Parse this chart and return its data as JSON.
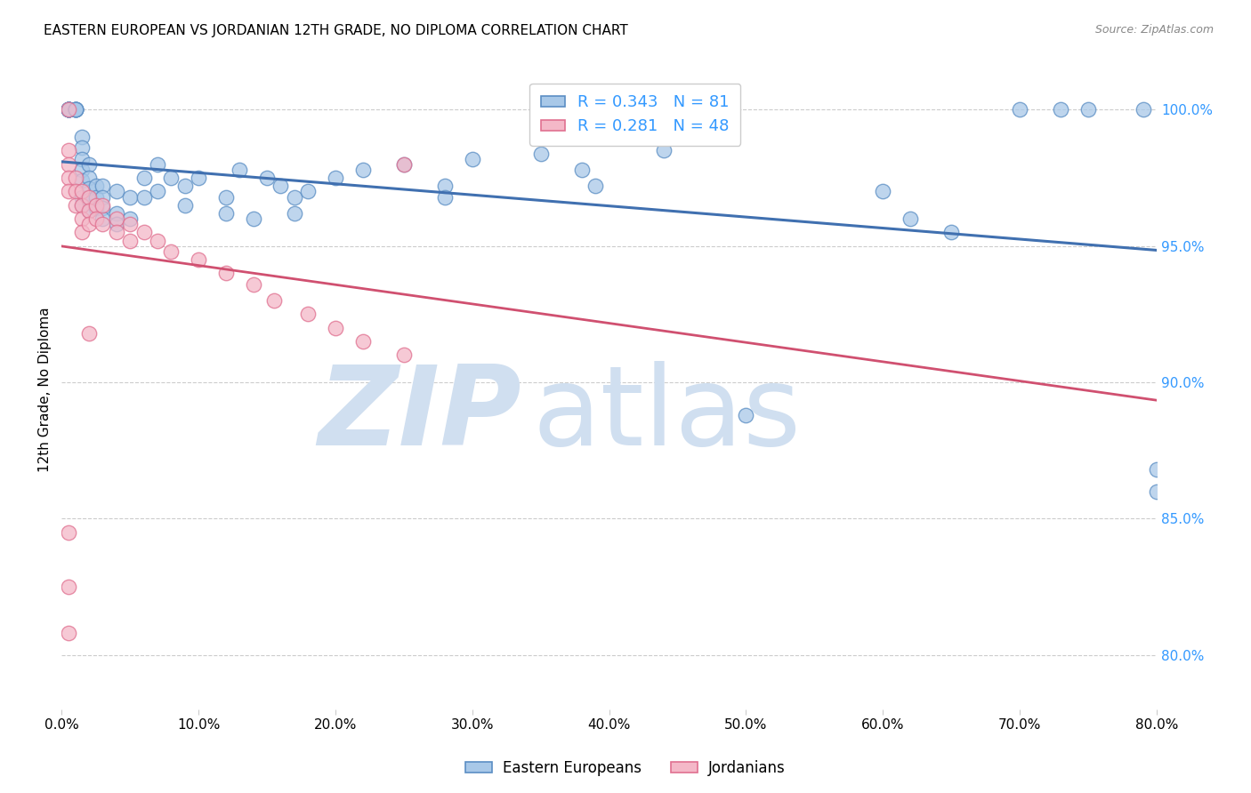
{
  "title": "EASTERN EUROPEAN VS JORDANIAN 12TH GRADE, NO DIPLOMA CORRELATION CHART",
  "source": "Source: ZipAtlas.com",
  "ylabel_left": "12th Grade, No Diploma",
  "x_tick_labels": [
    "0.0%",
    "10.0%",
    "20.0%",
    "30.0%",
    "40.0%",
    "50.0%",
    "60.0%",
    "70.0%",
    "80.0%"
  ],
  "x_tick_values": [
    0.0,
    0.1,
    0.2,
    0.3,
    0.4,
    0.5,
    0.6,
    0.7,
    0.8
  ],
  "y_tick_labels": [
    "100.0%",
    "95.0%",
    "90.0%",
    "85.0%",
    "80.0%"
  ],
  "y_tick_values": [
    1.0,
    0.95,
    0.9,
    0.85,
    0.8
  ],
  "xlim": [
    0.0,
    0.8
  ],
  "ylim": [
    0.78,
    1.015
  ],
  "legend_label_blue": "Eastern Europeans",
  "legend_label_pink": "Jordanians",
  "R_blue": 0.343,
  "N_blue": 81,
  "R_pink": 0.281,
  "N_pink": 48,
  "blue_color": "#A8C8E8",
  "pink_color": "#F4B8C8",
  "blue_edge_color": "#5B8EC4",
  "pink_edge_color": "#E07090",
  "blue_line_color": "#4070B0",
  "pink_line_color": "#D05070",
  "watermark_zip": "ZIP",
  "watermark_atlas": "atlas",
  "watermark_color": "#D0DFF0",
  "grid_color": "#CCCCCC",
  "right_axis_color": "#3399FF",
  "blue_scatter_x": [
    0.005,
    0.005,
    0.005,
    0.005,
    0.005,
    0.005,
    0.005,
    0.005,
    0.005,
    0.01,
    0.01,
    0.01,
    0.01,
    0.01,
    0.015,
    0.015,
    0.015,
    0.015,
    0.015,
    0.015,
    0.015,
    0.02,
    0.02,
    0.02,
    0.02,
    0.02,
    0.025,
    0.025,
    0.025,
    0.03,
    0.03,
    0.03,
    0.03,
    0.04,
    0.04,
    0.04,
    0.05,
    0.05,
    0.06,
    0.06,
    0.07,
    0.07,
    0.08,
    0.09,
    0.09,
    0.1,
    0.12,
    0.12,
    0.13,
    0.14,
    0.15,
    0.16,
    0.17,
    0.17,
    0.18,
    0.2,
    0.22,
    0.25,
    0.28,
    0.28,
    0.3,
    0.35,
    0.38,
    0.39,
    0.44,
    0.5,
    0.6,
    0.62,
    0.65,
    0.7,
    0.73,
    0.75,
    0.79,
    0.8,
    0.8
  ],
  "blue_scatter_y": [
    1.0,
    1.0,
    1.0,
    1.0,
    1.0,
    1.0,
    1.0,
    1.0,
    1.0,
    1.0,
    1.0,
    1.0,
    1.0,
    1.0,
    0.99,
    0.986,
    0.982,
    0.978,
    0.974,
    0.968,
    0.965,
    0.98,
    0.975,
    0.971,
    0.967,
    0.963,
    0.972,
    0.968,
    0.964,
    0.972,
    0.968,
    0.964,
    0.96,
    0.97,
    0.962,
    0.958,
    0.968,
    0.96,
    0.975,
    0.968,
    0.98,
    0.97,
    0.975,
    0.972,
    0.965,
    0.975,
    0.968,
    0.962,
    0.978,
    0.96,
    0.975,
    0.972,
    0.968,
    0.962,
    0.97,
    0.975,
    0.978,
    0.98,
    0.972,
    0.968,
    0.982,
    0.984,
    0.978,
    0.972,
    0.985,
    0.888,
    0.97,
    0.96,
    0.955,
    1.0,
    1.0,
    1.0,
    1.0,
    0.868,
    0.86
  ],
  "pink_scatter_x": [
    0.005,
    0.005,
    0.005,
    0.005,
    0.005,
    0.01,
    0.01,
    0.01,
    0.015,
    0.015,
    0.015,
    0.015,
    0.02,
    0.02,
    0.02,
    0.025,
    0.025,
    0.03,
    0.03,
    0.04,
    0.04,
    0.05,
    0.05,
    0.06,
    0.07,
    0.08,
    0.1,
    0.12,
    0.14,
    0.155,
    0.18,
    0.2,
    0.22,
    0.25,
    0.005,
    0.02,
    0.25,
    0.005,
    0.005
  ],
  "pink_scatter_y": [
    1.0,
    0.985,
    0.98,
    0.975,
    0.97,
    0.975,
    0.97,
    0.965,
    0.97,
    0.965,
    0.96,
    0.955,
    0.968,
    0.963,
    0.958,
    0.965,
    0.96,
    0.965,
    0.958,
    0.96,
    0.955,
    0.958,
    0.952,
    0.955,
    0.952,
    0.948,
    0.945,
    0.94,
    0.936,
    0.93,
    0.925,
    0.92,
    0.915,
    0.91,
    0.845,
    0.918,
    0.98,
    0.825,
    0.808
  ]
}
